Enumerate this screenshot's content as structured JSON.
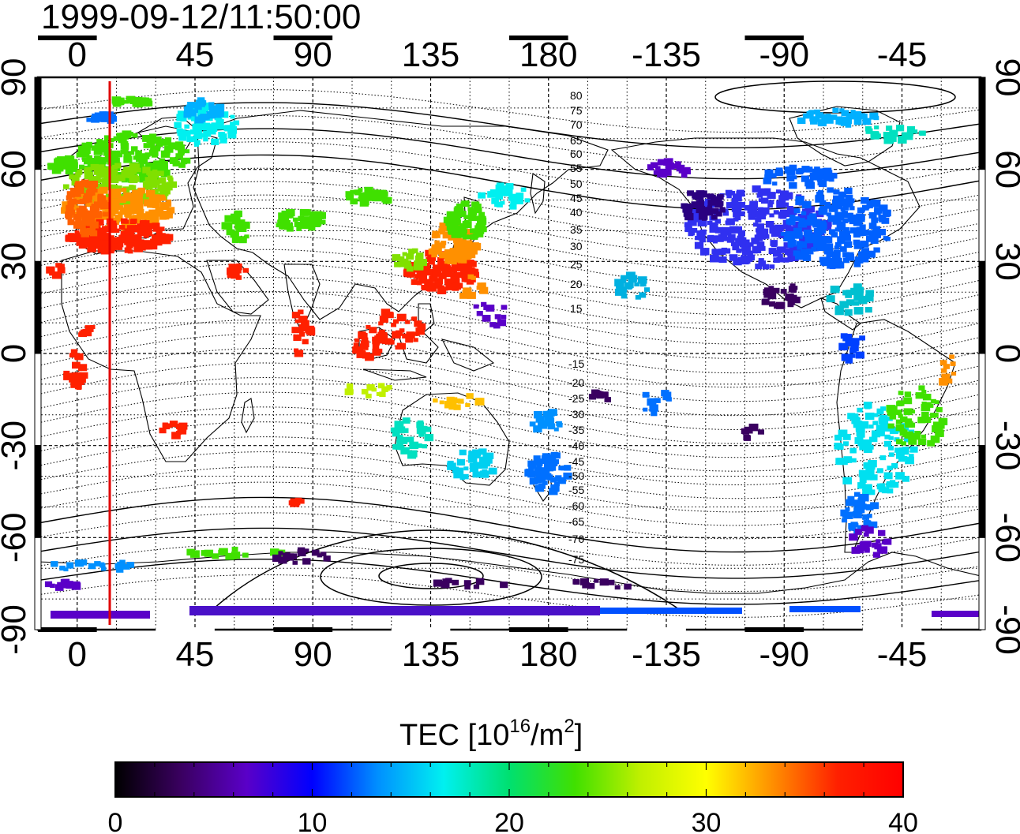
{
  "timestamp": "1999-09-12/11:50:00",
  "map": {
    "lon_labels": [
      "0",
      "45",
      "90",
      "135",
      "180",
      "-135",
      "-90",
      "-45"
    ],
    "lat_labels": [
      "90",
      "60",
      "30",
      "0",
      "-30",
      "-60",
      "-90"
    ],
    "contour_labels": {
      "north": [
        "80",
        "75",
        "70",
        "65",
        "60",
        "55",
        "50",
        "45",
        "40",
        "35",
        "30",
        "25",
        "20",
        "15"
      ],
      "south": [
        "-15",
        "-20",
        "-25",
        "-30",
        "-35",
        "-40",
        "-45",
        "-50",
        "-55",
        "-60",
        "-65",
        "-70",
        "-75"
      ]
    },
    "marker_color": "#e00000"
  },
  "colorbar": {
    "title_main": "TEC  [10",
    "title_sup1": "16",
    "title_mid": "/m",
    "title_sup2": "2",
    "title_end": "]",
    "tick_labels": [
      "0",
      "10",
      "20",
      "30",
      "40"
    ],
    "range": [
      0,
      40
    ],
    "colors": [
      "#000000",
      "#3a0060",
      "#5a00c8",
      "#0000ff",
      "#0090ff",
      "#00f0f0",
      "#00e070",
      "#40e000",
      "#c0f000",
      "#ffff00",
      "#ff9000",
      "#ff2000",
      "#ff0000"
    ]
  }
}
